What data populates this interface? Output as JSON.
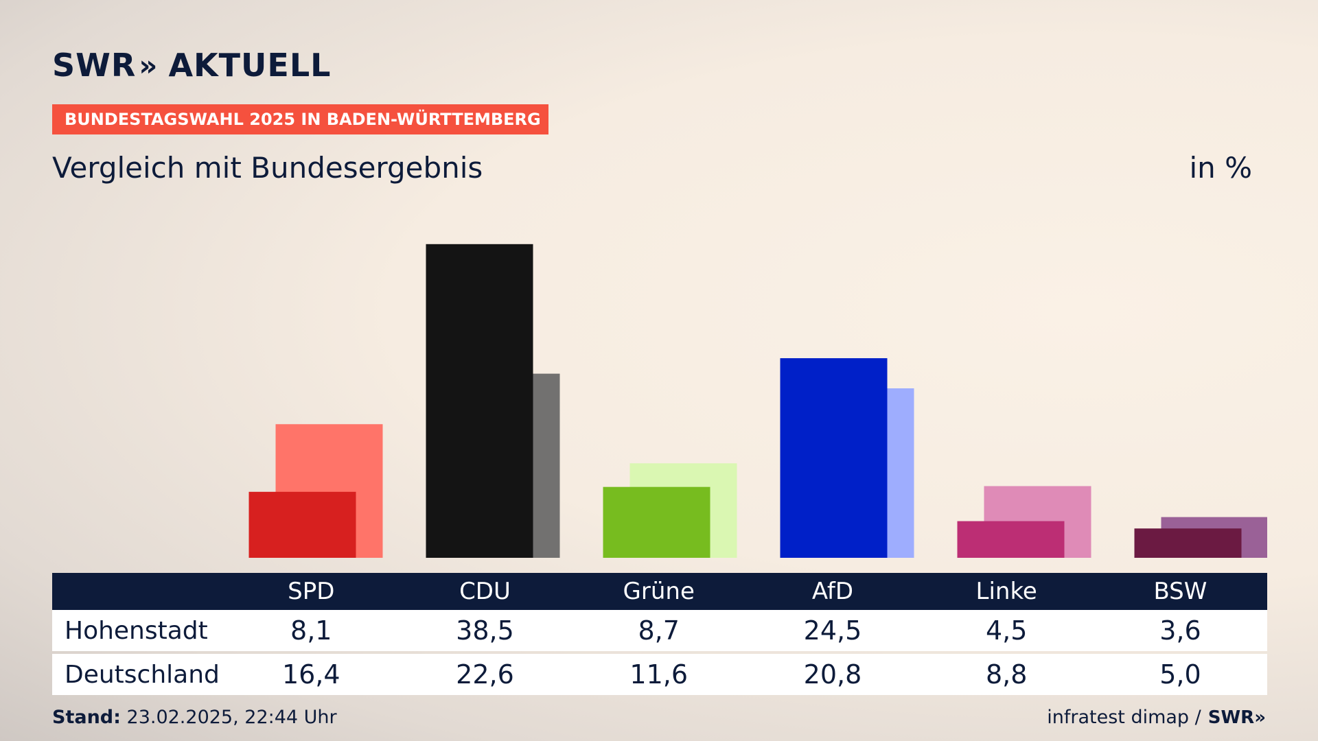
{
  "header": {
    "logo_text": "SWR",
    "logo_chevrons": "»",
    "logo_suffix": "AKTUELL",
    "banner": "BUNDESTAGSWAHL 2025 IN BADEN-WÜRTTEMBERG",
    "subtitle": "Vergleich mit Bundesergebnis",
    "unit": "in %"
  },
  "chart_data": {
    "type": "bar",
    "categories": [
      "SPD",
      "CDU",
      "Grüne",
      "AfD",
      "Linke",
      "BSW"
    ],
    "series": [
      {
        "name": "Hohenstadt",
        "values": [
          8.1,
          38.5,
          8.7,
          24.5,
          4.5,
          3.6
        ]
      },
      {
        "name": "Deutschland",
        "values": [
          16.4,
          22.6,
          11.6,
          20.8,
          8.8,
          5.0
        ]
      }
    ],
    "ylim": [
      0,
      40
    ],
    "colors_primary": [
      "#d7201f",
      "#141414",
      "#77bc1f",
      "#0020c8",
      "#bc2e74",
      "#6b1a42"
    ],
    "colors_secondary": [
      "#ff7469",
      "#727170",
      "#daf7b2",
      "#9eadfe",
      "#df8bb7",
      "#9a6197"
    ]
  },
  "table": {
    "headers": [
      "SPD",
      "CDU",
      "Grüne",
      "AfD",
      "Linke",
      "BSW"
    ],
    "rows": [
      {
        "label": "Hohenstadt",
        "values": [
          "8,1",
          "38,5",
          "8,7",
          "24,5",
          "4,5",
          "3,6"
        ]
      },
      {
        "label": "Deutschland",
        "values": [
          "16,4",
          "22,6",
          "11,6",
          "20,8",
          "8,8",
          "5,0"
        ]
      }
    ]
  },
  "footer": {
    "stand_label": "Stand:",
    "stand_value": "23.02.2025, 22:44 Uhr",
    "source": "infratest dimap /",
    "source_brand": "SWR»"
  }
}
